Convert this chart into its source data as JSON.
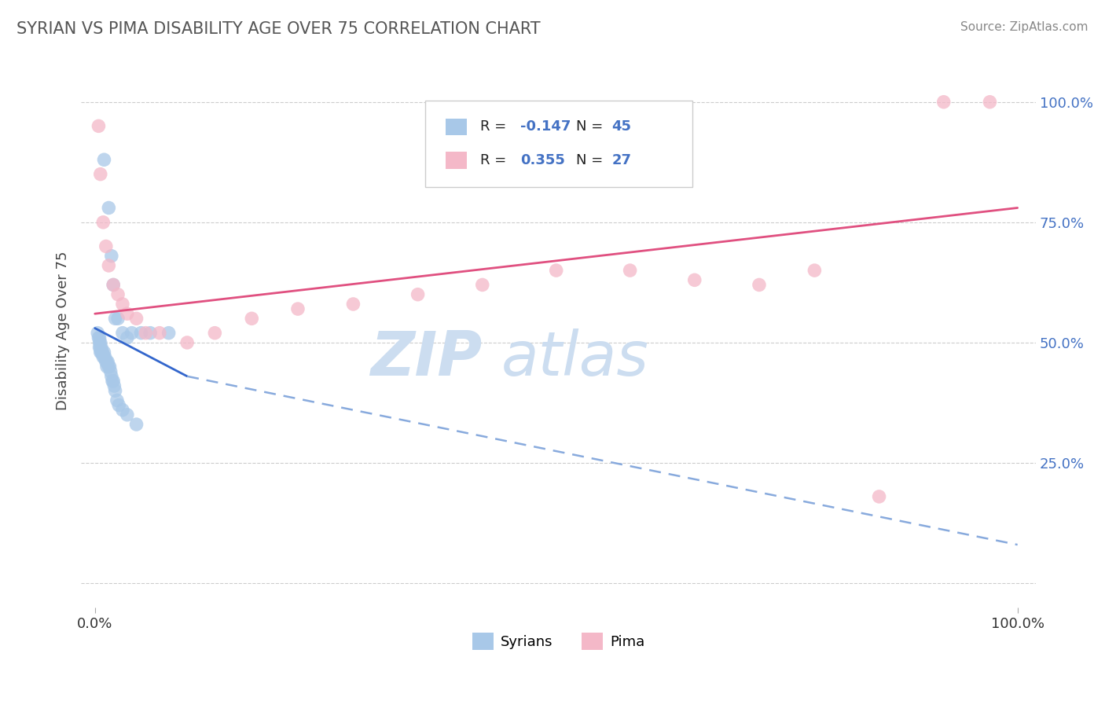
{
  "title": "SYRIAN VS PIMA DISABILITY AGE OVER 75 CORRELATION CHART",
  "source": "Source: ZipAtlas.com",
  "ylabel": "Disability Age Over 75",
  "xlim": [
    -1.5,
    102
  ],
  "ylim": [
    -5,
    110
  ],
  "xtick_positions": [
    0,
    100
  ],
  "xticklabels": [
    "0.0%",
    "100.0%"
  ],
  "ytick_positions": [
    0,
    25,
    50,
    75,
    100
  ],
  "ytick_labels": [
    "",
    "25.0%",
    "50.0%",
    "75.0%",
    "100.0%"
  ],
  "grid_color": "#cccccc",
  "background_color": "#ffffff",
  "syrians_color": "#a8c8e8",
  "pima_color": "#f4b8c8",
  "legend_r_syrians": "-0.147",
  "legend_n_syrians": "45",
  "legend_r_pima": "0.355",
  "legend_n_pima": "27",
  "syrians_x": [
    1.0,
    1.5,
    1.8,
    2.0,
    2.2,
    2.5,
    3.0,
    3.5,
    4.0,
    5.0,
    6.0,
    8.0,
    0.3,
    0.4,
    0.5,
    0.5,
    0.5,
    0.6,
    0.6,
    0.6,
    0.7,
    0.7,
    0.8,
    0.8,
    0.9,
    1.0,
    1.0,
    1.1,
    1.2,
    1.3,
    1.3,
    1.4,
    1.5,
    1.6,
    1.7,
    1.8,
    1.9,
    2.0,
    2.1,
    2.2,
    2.4,
    2.6,
    3.0,
    3.5,
    4.5
  ],
  "syrians_y": [
    88,
    78,
    68,
    62,
    55,
    55,
    52,
    51,
    52,
    52,
    52,
    52,
    52,
    51,
    51,
    50,
    49,
    50,
    49,
    48,
    49,
    48,
    48,
    48,
    47,
    48,
    47,
    47,
    46,
    46,
    45,
    46,
    45,
    45,
    44,
    43,
    42,
    42,
    41,
    40,
    38,
    37,
    36,
    35,
    33
  ],
  "pima_x": [
    0.4,
    0.6,
    0.9,
    1.2,
    1.5,
    2.0,
    2.5,
    3.0,
    3.5,
    4.5,
    5.5,
    7.0,
    10.0,
    13.0,
    17.0,
    22.0,
    28.0,
    35.0,
    42.0,
    50.0,
    58.0,
    65.0,
    72.0,
    78.0,
    85.0,
    92.0,
    97.0
  ],
  "pima_y": [
    95,
    85,
    75,
    70,
    66,
    62,
    60,
    58,
    56,
    55,
    52,
    52,
    50,
    52,
    55,
    57,
    58,
    60,
    62,
    65,
    65,
    63,
    62,
    65,
    18,
    100,
    100
  ],
  "trend_syrians_x0": 0.0,
  "trend_syrians_x1": 10.0,
  "trend_syrians_y0": 53.0,
  "trend_syrians_y1": 43.0,
  "trend_syrians_dash_x0": 10.0,
  "trend_syrians_dash_x1": 100.0,
  "trend_syrians_dash_y0": 43.0,
  "trend_syrians_dash_y1": 8.0,
  "trend_pima_x0": 0.0,
  "trend_pima_x1": 100.0,
  "trend_pima_y0": 56.0,
  "trend_pima_y1": 78.0,
  "watermark_line1": "ZIP",
  "watermark_line2": "atlas",
  "watermark_color": "#ccddf0"
}
